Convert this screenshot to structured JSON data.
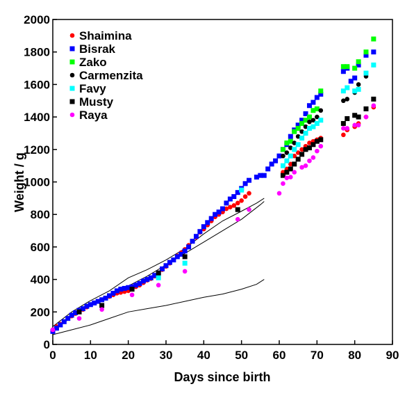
{
  "chart_data": {
    "type": "scatter",
    "title": "",
    "xlabel": "Days since birth",
    "ylabel": "Weight / g",
    "xlim": [
      0,
      90
    ],
    "ylim": [
      0,
      2000
    ],
    "xticks": [
      0,
      10,
      20,
      30,
      40,
      50,
      60,
      70,
      80,
      90
    ],
    "yticks": [
      0,
      200,
      400,
      600,
      800,
      1000,
      1200,
      1400,
      1600,
      1800,
      2000
    ],
    "grid": false,
    "legend_position": "top-left",
    "series": [
      {
        "name": "Shaimina",
        "color": "#ff0000",
        "marker": "circle",
        "points": [
          [
            0,
            90
          ],
          [
            1,
            110
          ],
          [
            2,
            125
          ],
          [
            3,
            140
          ],
          [
            4,
            160
          ],
          [
            5,
            175
          ],
          [
            6,
            190
          ],
          [
            7,
            205
          ],
          [
            8,
            215
          ],
          [
            9,
            230
          ],
          [
            10,
            245
          ],
          [
            11,
            255
          ],
          [
            12,
            265
          ],
          [
            13,
            275
          ],
          [
            14,
            285
          ],
          [
            15,
            295
          ],
          [
            16,
            305
          ],
          [
            17,
            315
          ],
          [
            18,
            320
          ],
          [
            19,
            325
          ],
          [
            20,
            330
          ],
          [
            21,
            340
          ],
          [
            22,
            355
          ],
          [
            23,
            365
          ],
          [
            24,
            380
          ],
          [
            25,
            395
          ],
          [
            26,
            405
          ],
          [
            27,
            420
          ],
          [
            28,
            440
          ],
          [
            29,
            460
          ],
          [
            30,
            480
          ],
          [
            31,
            500
          ],
          [
            32,
            520
          ],
          [
            33,
            545
          ],
          [
            34,
            565
          ],
          [
            35,
            585
          ],
          [
            36,
            610
          ],
          [
            37,
            635
          ],
          [
            38,
            660
          ],
          [
            39,
            690
          ],
          [
            40,
            710
          ],
          [
            41,
            735
          ],
          [
            42,
            760
          ],
          [
            43,
            785
          ],
          [
            44,
            800
          ],
          [
            45,
            815
          ],
          [
            46,
            835
          ],
          [
            47,
            845
          ],
          [
            48,
            855
          ],
          [
            49,
            870
          ],
          [
            50,
            885
          ],
          [
            51,
            910
          ],
          [
            52,
            930
          ],
          [
            61,
            1060
          ],
          [
            62,
            1080
          ],
          [
            63,
            1110
          ],
          [
            64,
            1160
          ],
          [
            65,
            1180
          ],
          [
            66,
            1200
          ],
          [
            67,
            1220
          ],
          [
            68,
            1240
          ],
          [
            69,
            1250
          ],
          [
            70,
            1260
          ],
          [
            71,
            1270
          ],
          [
            77,
            1290
          ],
          [
            78,
            1320
          ],
          [
            80,
            1340
          ],
          [
            81,
            1360
          ],
          [
            83,
            1400
          ],
          [
            85,
            1460
          ]
        ]
      },
      {
        "name": "Bisrak",
        "color": "#0000ff",
        "marker": "square",
        "points": [
          [
            0,
            80
          ],
          [
            1,
            100
          ],
          [
            2,
            120
          ],
          [
            3,
            140
          ],
          [
            4,
            160
          ],
          [
            5,
            180
          ],
          [
            6,
            195
          ],
          [
            7,
            210
          ],
          [
            8,
            220
          ],
          [
            9,
            235
          ],
          [
            10,
            245
          ],
          [
            11,
            255
          ],
          [
            12,
            265
          ],
          [
            13,
            275
          ],
          [
            14,
            285
          ],
          [
            15,
            300
          ],
          [
            16,
            315
          ],
          [
            17,
            330
          ],
          [
            18,
            340
          ],
          [
            19,
            345
          ],
          [
            20,
            350
          ],
          [
            21,
            355
          ],
          [
            22,
            365
          ],
          [
            23,
            375
          ],
          [
            24,
            390
          ],
          [
            25,
            400
          ],
          [
            26,
            410
          ],
          [
            27,
            425
          ],
          [
            28,
            440
          ],
          [
            29,
            465
          ],
          [
            30,
            485
          ],
          [
            31,
            505
          ],
          [
            32,
            520
          ],
          [
            33,
            540
          ],
          [
            34,
            555
          ],
          [
            35,
            575
          ],
          [
            36,
            600
          ],
          [
            37,
            635
          ],
          [
            38,
            665
          ],
          [
            39,
            695
          ],
          [
            40,
            725
          ],
          [
            41,
            750
          ],
          [
            42,
            775
          ],
          [
            43,
            800
          ],
          [
            44,
            815
          ],
          [
            45,
            835
          ],
          [
            46,
            870
          ],
          [
            47,
            895
          ],
          [
            48,
            910
          ],
          [
            49,
            935
          ],
          [
            50,
            960
          ],
          [
            51,
            990
          ],
          [
            52,
            1010
          ],
          [
            54,
            1030
          ],
          [
            55,
            1040
          ],
          [
            56,
            1040
          ],
          [
            57,
            1080
          ],
          [
            58,
            1110
          ],
          [
            59,
            1130
          ],
          [
            60,
            1160
          ],
          [
            61,
            1200
          ],
          [
            62,
            1230
          ],
          [
            63,
            1280
          ],
          [
            64,
            1320
          ],
          [
            65,
            1350
          ],
          [
            66,
            1380
          ],
          [
            67,
            1420
          ],
          [
            68,
            1470
          ],
          [
            69,
            1490
          ],
          [
            70,
            1520
          ],
          [
            71,
            1540
          ],
          [
            77,
            1680
          ],
          [
            78,
            1700
          ],
          [
            79,
            1620
          ],
          [
            80,
            1640
          ],
          [
            81,
            1720
          ],
          [
            83,
            1780
          ],
          [
            85,
            1800
          ]
        ]
      },
      {
        "name": "Zako",
        "color": "#00ff00",
        "marker": "square",
        "points": [
          [
            61,
            1200
          ],
          [
            62,
            1240
          ],
          [
            63,
            1250
          ],
          [
            64,
            1310
          ],
          [
            65,
            1330
          ],
          [
            66,
            1360
          ],
          [
            67,
            1380
          ],
          [
            68,
            1400
          ],
          [
            69,
            1440
          ],
          [
            70,
            1450
          ],
          [
            71,
            1560
          ],
          [
            77,
            1710
          ],
          [
            78,
            1710
          ],
          [
            80,
            1700
          ],
          [
            81,
            1740
          ],
          [
            83,
            1800
          ],
          [
            85,
            1880
          ]
        ]
      },
      {
        "name": "Carmenzita",
        "color": "#000000",
        "marker": "circle",
        "points": [
          [
            61,
            1160
          ],
          [
            62,
            1180
          ],
          [
            63,
            1210
          ],
          [
            64,
            1240
          ],
          [
            65,
            1280
          ],
          [
            66,
            1310
          ],
          [
            67,
            1340
          ],
          [
            68,
            1370
          ],
          [
            69,
            1380
          ],
          [
            70,
            1400
          ],
          [
            71,
            1440
          ],
          [
            77,
            1500
          ],
          [
            78,
            1510
          ],
          [
            80,
            1550
          ],
          [
            81,
            1600
          ],
          [
            83,
            1650
          ],
          [
            85,
            1720
          ]
        ]
      },
      {
        "name": "Favy",
        "color": "#00ffff",
        "marker": "square",
        "points": [
          [
            28,
            410
          ],
          [
            35,
            500
          ],
          [
            50,
            950
          ],
          [
            61,
            1100
          ],
          [
            62,
            1130
          ],
          [
            63,
            1160
          ],
          [
            64,
            1200
          ],
          [
            65,
            1230
          ],
          [
            66,
            1270
          ],
          [
            67,
            1300
          ],
          [
            68,
            1330
          ],
          [
            69,
            1340
          ],
          [
            70,
            1360
          ],
          [
            71,
            1380
          ],
          [
            77,
            1560
          ],
          [
            78,
            1580
          ],
          [
            80,
            1560
          ],
          [
            81,
            1570
          ],
          [
            83,
            1670
          ],
          [
            85,
            1720
          ]
        ]
      },
      {
        "name": "Musty",
        "color": "#000000",
        "marker": "square",
        "points": [
          [
            7,
            200
          ],
          [
            13,
            240
          ],
          [
            21,
            340
          ],
          [
            28,
            440
          ],
          [
            35,
            540
          ],
          [
            49,
            830
          ],
          [
            61,
            1040
          ],
          [
            62,
            1060
          ],
          [
            63,
            1080
          ],
          [
            64,
            1110
          ],
          [
            65,
            1140
          ],
          [
            66,
            1170
          ],
          [
            67,
            1200
          ],
          [
            68,
            1210
          ],
          [
            69,
            1230
          ],
          [
            70,
            1250
          ],
          [
            71,
            1260
          ],
          [
            77,
            1360
          ],
          [
            78,
            1390
          ],
          [
            80,
            1410
          ],
          [
            81,
            1400
          ],
          [
            83,
            1450
          ],
          [
            85,
            1510
          ]
        ]
      },
      {
        "name": "Raya",
        "color": "#ff00ff",
        "marker": "circle",
        "points": [
          [
            0,
            90
          ],
          [
            7,
            160
          ],
          [
            13,
            215
          ],
          [
            21,
            305
          ],
          [
            28,
            365
          ],
          [
            35,
            450
          ],
          [
            49,
            770
          ],
          [
            52,
            830
          ],
          [
            60,
            930
          ],
          [
            61,
            990
          ],
          [
            62,
            1025
          ],
          [
            63,
            1030
          ],
          [
            64,
            1060
          ],
          [
            66,
            1090
          ],
          [
            67,
            1100
          ],
          [
            68,
            1130
          ],
          [
            69,
            1150
          ],
          [
            70,
            1190
          ],
          [
            71,
            1220
          ],
          [
            77,
            1330
          ],
          [
            78,
            1330
          ],
          [
            80,
            1350
          ],
          [
            81,
            1350
          ],
          [
            83,
            1400
          ],
          [
            85,
            1470
          ]
        ]
      }
    ],
    "reference_lines": [
      {
        "color": "#000000",
        "points": [
          [
            0,
            80
          ],
          [
            5,
            170
          ],
          [
            10,
            240
          ],
          [
            15,
            295
          ],
          [
            20,
            360
          ],
          [
            25,
            420
          ],
          [
            30,
            490
          ],
          [
            35,
            560
          ],
          [
            40,
            630
          ],
          [
            45,
            700
          ],
          [
            50,
            770
          ],
          [
            55,
            860
          ],
          [
            56,
            880
          ]
        ]
      },
      {
        "color": "#000000",
        "points": [
          [
            0,
            110
          ],
          [
            5,
            200
          ],
          [
            10,
            270
          ],
          [
            15,
            330
          ],
          [
            20,
            410
          ],
          [
            25,
            460
          ],
          [
            30,
            520
          ],
          [
            35,
            590
          ],
          [
            40,
            680
          ],
          [
            45,
            760
          ],
          [
            50,
            820
          ],
          [
            54,
            870
          ],
          [
            56,
            900
          ]
        ]
      },
      {
        "color": "#000000",
        "points": [
          [
            0,
            60
          ],
          [
            5,
            90
          ],
          [
            10,
            120
          ],
          [
            15,
            160
          ],
          [
            20,
            200
          ],
          [
            25,
            220
          ],
          [
            30,
            240
          ],
          [
            35,
            265
          ],
          [
            40,
            290
          ],
          [
            45,
            310
          ],
          [
            50,
            340
          ],
          [
            54,
            370
          ],
          [
            56,
            400
          ]
        ]
      }
    ]
  }
}
